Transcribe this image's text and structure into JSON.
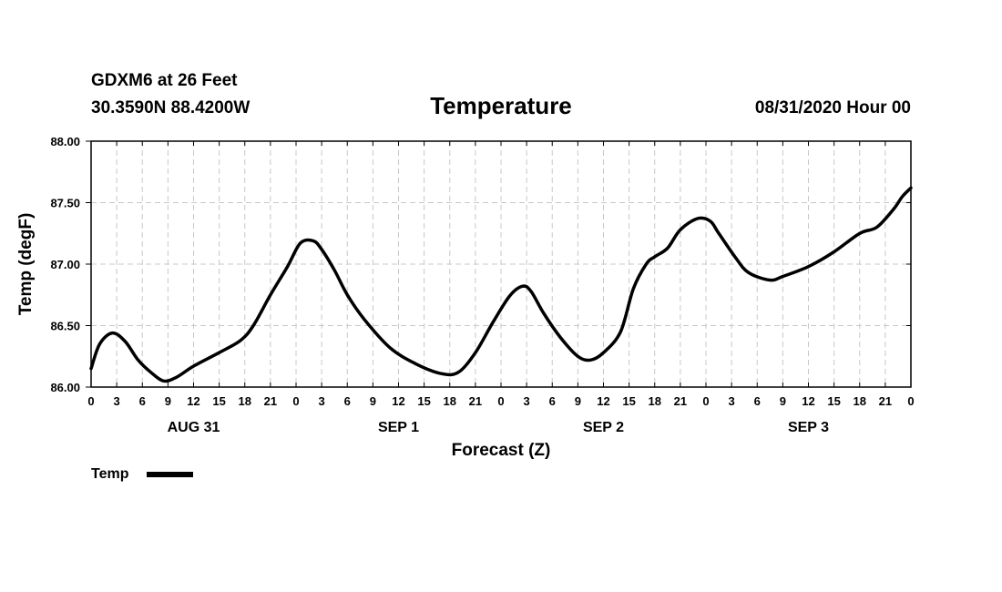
{
  "header": {
    "station": "GDXM6 at 26 Feet",
    "coords": "30.3590N 88.4200W",
    "datetime": "08/31/2020 Hour 00"
  },
  "colors": {
    "line": "#000000",
    "grid": "#c8c8c8",
    "background": "#ffffff"
  },
  "chart_data": {
    "type": "line",
    "title": "Temperature",
    "xlabel": "Forecast (Z)",
    "ylabel": "Temp (degF)",
    "ylim": [
      86.0,
      88.0
    ],
    "xlim": [
      0,
      96
    ],
    "grid": true,
    "y_ticks": [
      "86.00",
      "86.50",
      "87.00",
      "87.50",
      "88.00"
    ],
    "y_tick_values": [
      86.0,
      86.5,
      87.0,
      87.5,
      88.0
    ],
    "x_tick_labels": [
      "0",
      "3",
      "6",
      "9",
      "12",
      "15",
      "18",
      "21",
      "0",
      "3",
      "6",
      "9",
      "12",
      "15",
      "18",
      "21",
      "0",
      "3",
      "6",
      "9",
      "12",
      "15",
      "18",
      "21",
      "0",
      "3",
      "6",
      "9",
      "12",
      "15",
      "18",
      "21",
      "0"
    ],
    "day_labels": [
      {
        "label": "AUG 31",
        "hour": 12
      },
      {
        "label": "SEP 1",
        "hour": 36
      },
      {
        "label": "SEP 2",
        "hour": 60
      },
      {
        "label": "SEP 3",
        "hour": 84
      }
    ],
    "legend": {
      "position": "bottom-left",
      "entries": [
        "Temp"
      ]
    },
    "series": [
      {
        "name": "Temp",
        "x": [
          0,
          1,
          2.5,
          4,
          5.5,
          7,
          8.5,
          10,
          12,
          15,
          17.5,
          19,
          21,
          23,
          24.5,
          26,
          27,
          28.5,
          30,
          32,
          35,
          38,
          41,
          43,
          45,
          47,
          49,
          50.5,
          51.5,
          53,
          55,
          57,
          58.5,
          60,
          62,
          63.5,
          65,
          66,
          67.5,
          69,
          71,
          72.5,
          73.5,
          75.5,
          77,
          79.5,
          81,
          84,
          87,
          90,
          92,
          94,
          95,
          96
        ],
        "values": [
          86.15,
          86.35,
          86.44,
          86.37,
          86.22,
          86.12,
          86.05,
          86.08,
          86.17,
          86.28,
          86.38,
          86.5,
          86.75,
          86.98,
          87.17,
          87.19,
          87.12,
          86.95,
          86.75,
          86.55,
          86.32,
          86.19,
          86.11,
          86.12,
          86.28,
          86.52,
          86.74,
          86.82,
          86.78,
          86.6,
          86.4,
          86.25,
          86.22,
          86.28,
          86.45,
          86.8,
          87.0,
          87.06,
          87.13,
          87.28,
          87.37,
          87.35,
          87.25,
          87.05,
          86.93,
          86.87,
          86.9,
          86.98,
          87.1,
          87.25,
          87.3,
          87.45,
          87.55,
          87.62
        ]
      }
    ]
  }
}
